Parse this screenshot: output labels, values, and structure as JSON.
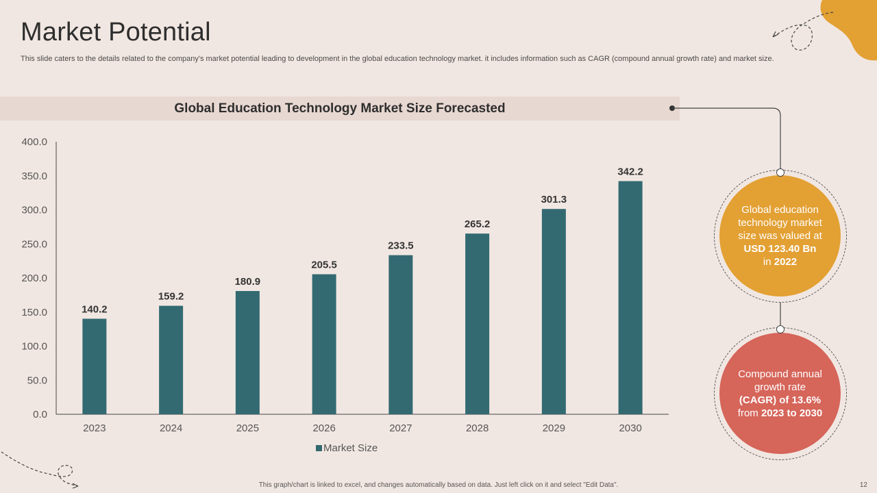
{
  "slide": {
    "title": "Market Potential",
    "subtitle": "This slide caters to the details related to the company's market potential leading to development in the global education technology market. it includes information such as CAGR (compound annual growth rate) and market size.",
    "footer": "This graph/chart is linked to excel, and changes automatically based on data. Just left click on it and select \"Edit Data\".",
    "page_number": "12"
  },
  "chart_data": {
    "type": "bar",
    "title": "Global Education Technology Market Size Forecasted",
    "categories": [
      "2023",
      "2024",
      "2025",
      "2026",
      "2027",
      "2028",
      "2029",
      "2030"
    ],
    "series": [
      {
        "name": "Market Size",
        "values": [
          140.2,
          159.2,
          180.9,
          205.5,
          233.5,
          265.2,
          301.3,
          342.2
        ]
      }
    ],
    "data_labels": [
      "140.2",
      "159.2",
      "180.9",
      "205.5",
      "233.5",
      "265.2",
      "301.3",
      "342.2"
    ],
    "yticks": [
      "0.0",
      "50.0",
      "100.0",
      "150.0",
      "200.0",
      "250.0",
      "300.0",
      "350.0",
      "400.0"
    ],
    "ylim": [
      0,
      400
    ],
    "xlabel": "",
    "ylabel": "",
    "legend_position": "bottom",
    "bar_color": "#336a72"
  },
  "callouts": {
    "market_value": {
      "line1": "Global education",
      "line2": "technology market",
      "line3": "size was valued at",
      "line4": "USD 123.40 Bn",
      "line5_prefix": "in ",
      "line5_bold": "2022"
    },
    "cagr": {
      "line1": "Compound annual",
      "line2": "growth rate",
      "line3": "(CAGR) of 13.6%",
      "line4_prefix": "from ",
      "line4_bold": "2023 to 2030"
    }
  },
  "colors": {
    "background": "#f1e7e2",
    "accent_orange": "#e3a033",
    "accent_red": "#d6655a"
  }
}
